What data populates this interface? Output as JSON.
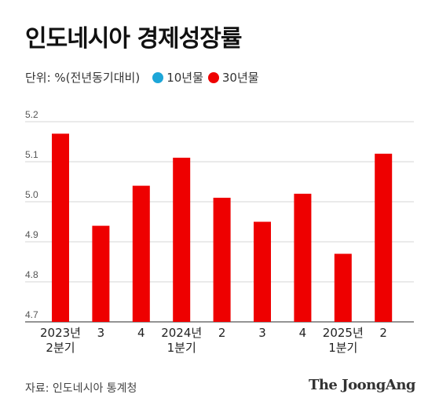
{
  "title": "인도네시아 경제성장률",
  "legend": {
    "unit": "단위: %(전년동기대비)",
    "items": [
      {
        "label": "10년물",
        "color": "#1da6d8"
      },
      {
        "label": "30년물",
        "color": "#ee0000"
      }
    ]
  },
  "source": "자료: 인도네시아 통계청",
  "brand": "The JoongAng",
  "chart_data": {
    "type": "bar",
    "categories": [
      [
        "2023년",
        "2분기"
      ],
      [
        "3"
      ],
      [
        "4"
      ],
      [
        "2024년",
        "1분기"
      ],
      [
        "2"
      ],
      [
        "3"
      ],
      [
        "4"
      ],
      [
        "2025년",
        "1분기"
      ],
      [
        "2"
      ]
    ],
    "series": [
      {
        "name": "30년물",
        "color": "#ee0000",
        "values": [
          5.17,
          4.94,
          5.04,
          5.11,
          5.01,
          4.95,
          5.02,
          4.87,
          5.12
        ]
      }
    ],
    "ylim": [
      4.7,
      5.2
    ],
    "yticks": [
      4.7,
      4.8,
      4.9,
      5.0,
      5.1,
      5.2
    ],
    "ytick_labels": [
      "4.7",
      "4.8",
      "4.9",
      "5.0",
      "5.1",
      "5.2"
    ],
    "grid": true
  }
}
